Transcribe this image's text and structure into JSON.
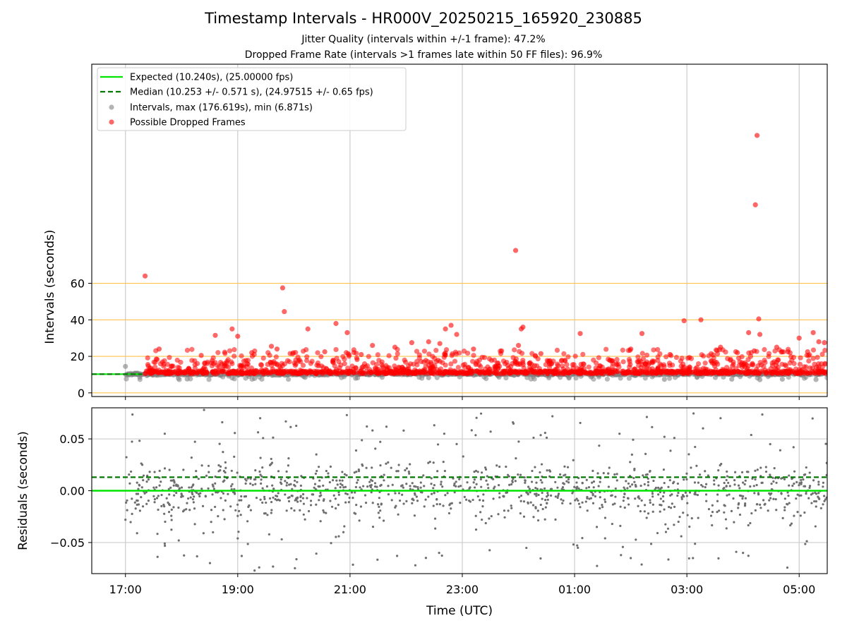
{
  "figure": {
    "title": "Timestamp Intervals - HR000V_20250215_165920_230885",
    "subtitle_1": "Jitter Quality (intervals within +/-1 frame): 47.2%",
    "subtitle_2": "Dropped Frame Rate (intervals >1 frames late within 50 FF files): 96.9%"
  },
  "colors": {
    "expected_line": "#00e400",
    "median_line": "#007a00",
    "intervals_points": "#808080",
    "dropped_points": "#ff0000",
    "threshold_lines": "#ffc34d",
    "residual_points": "#6e6e6e",
    "grid": "#cccccc"
  },
  "chart_data": [
    {
      "type": "scatter",
      "panel": "top",
      "ylabel": "Intervals (seconds)",
      "ylim": [
        -2,
        180
      ],
      "yticks": [
        0,
        20,
        40,
        60
      ],
      "ytick_labels": [
        "0",
        "20",
        "40",
        "60"
      ],
      "xlim_hours": [
        16.4,
        29.5
      ],
      "grid": "x only",
      "threshold_lines": [
        0,
        20,
        40,
        60
      ],
      "legend": {
        "placement": "upper-left",
        "entries": [
          "Expected (10.240s), (25.00000 fps)",
          "Median (10.253 +/- 0.571 s), (24.97515 +/- 0.65 fps)",
          "Intervals, max (176.619s), min (6.871s)",
          "Possible Dropped Frames"
        ]
      },
      "expected_value": 10.24,
      "median_value": 10.253,
      "median_line_extent_hours": [
        16.4,
        17.3
      ],
      "series": [
        {
          "name": "Intervals, max (176.619s), min (6.871s)",
          "note": "dense cloud of points near 10.24 s from 17:00 to 05:30 UTC",
          "x_range_hours": [
            17.0,
            29.5
          ],
          "y_range": [
            6.871,
            15.0
          ],
          "points": [
            [
              17.0,
              14.5
            ],
            [
              17.05,
              10.2
            ],
            [
              17.2,
              10.3
            ],
            [
              18.1,
              7.6
            ],
            [
              18.9,
              8.2
            ],
            [
              19.3,
              7.9
            ],
            [
              20.2,
              8.5
            ],
            [
              21.1,
              8.0
            ],
            [
              22.4,
              8.3
            ],
            [
              24.9,
              8.1
            ],
            [
              26.6,
              7.4
            ],
            [
              27.8,
              7.5
            ],
            [
              28.3,
              7.2
            ],
            [
              28.7,
              7.5
            ],
            [
              29.3,
              7.3
            ]
          ]
        },
        {
          "name": "Possible Dropped Frames",
          "note": "points above one frame late; dense band at 10.3-20 s",
          "x_range_hours": [
            17.35,
            29.5
          ],
          "points": [
            [
              17.35,
              64.0
            ],
            [
              17.55,
              18.5
            ],
            [
              17.6,
              24.0
            ],
            [
              18.35,
              20.5
            ],
            [
              18.6,
              31.5
            ],
            [
              18.9,
              35.0
            ],
            [
              19.0,
              31.0
            ],
            [
              19.25,
              22.0
            ],
            [
              19.6,
              25.5
            ],
            [
              19.7,
              24.0
            ],
            [
              19.8,
              57.5
            ],
            [
              19.83,
              44.5
            ],
            [
              20.25,
              35.0
            ],
            [
              20.55,
              22.5
            ],
            [
              20.75,
              38.0
            ],
            [
              20.95,
              33.0
            ],
            [
              21.2,
              21.0
            ],
            [
              21.4,
              26.0
            ],
            [
              21.8,
              25.0
            ],
            [
              22.1,
              27.5
            ],
            [
              22.4,
              28.0
            ],
            [
              22.6,
              27.0
            ],
            [
              22.7,
              35.0
            ],
            [
              22.8,
              37.0
            ],
            [
              22.9,
              32.0
            ],
            [
              23.2,
              24.0
            ],
            [
              23.7,
              23.0
            ],
            [
              24.0,
              26.0
            ],
            [
              24.05,
              35.0
            ],
            [
              24.08,
              36.0
            ],
            [
              23.95,
              78.0
            ],
            [
              24.4,
              21.5
            ],
            [
              25.1,
              32.5
            ],
            [
              26.0,
              24.0
            ],
            [
              26.2,
              32.5
            ],
            [
              26.7,
              21.0
            ],
            [
              26.95,
              39.5
            ],
            [
              27.25,
              40.0
            ],
            [
              27.6,
              25.0
            ],
            [
              27.9,
              22.0
            ],
            [
              28.1,
              33.0
            ],
            [
              28.2,
              23.0
            ],
            [
              28.25,
              141.0
            ],
            [
              28.22,
              103.0
            ],
            [
              28.28,
              40.5
            ],
            [
              28.3,
              32.0
            ],
            [
              28.6,
              25.0
            ],
            [
              28.8,
              22.5
            ],
            [
              29.0,
              30.0
            ],
            [
              29.15,
              22.5
            ],
            [
              29.25,
              33.0
            ],
            [
              29.35,
              28.0
            ],
            [
              29.45,
              27.5
            ]
          ]
        }
      ]
    },
    {
      "type": "scatter",
      "panel": "bottom",
      "xlabel": "Time (UTC)",
      "ylabel": "Residuals (seconds)",
      "ylim": [
        -0.08,
        0.08
      ],
      "yticks": [
        -0.05,
        0.0,
        0.05
      ],
      "ytick_labels": [
        "−0.05",
        "0.00",
        "0.05"
      ],
      "xlim_hours": [
        16.4,
        29.5
      ],
      "xticks_hours": [
        17,
        19,
        21,
        23,
        25,
        27,
        29
      ],
      "xtick_labels": [
        "17:00",
        "19:00",
        "21:00",
        "23:00",
        "01:00",
        "03:00",
        "05:00"
      ],
      "grid": "both",
      "expected_residual": 0.0,
      "median_residual": 0.013,
      "series": [
        {
          "name": "Residuals",
          "note": "about 1200 residual points clustered within roughly -0.02..+0.02 s, spreading to the axis limits",
          "x_range_hours": [
            17.0,
            29.5
          ],
          "y_range": [
            -0.08,
            0.08
          ],
          "points": [
            [
              17.0,
              -0.028
            ],
            [
              17.3,
              0.025
            ],
            [
              17.7,
              -0.051
            ],
            [
              17.7,
              0.055
            ],
            [
              17.95,
              -0.048
            ],
            [
              18.4,
              0.078
            ],
            [
              19.0,
              -0.046
            ],
            [
              19.3,
              -0.077
            ],
            [
              19.4,
              0.07
            ],
            [
              20.4,
              0.035
            ],
            [
              20.8,
              -0.044
            ],
            [
              21.3,
              0.062
            ],
            [
              22.9,
              0.045
            ],
            [
              24.1,
              -0.025
            ],
            [
              25.8,
              0.055
            ],
            [
              26.0,
              -0.065
            ],
            [
              26.6,
              0.052
            ],
            [
              26.9,
              -0.044
            ],
            [
              27.6,
              0.07
            ],
            [
              28.0,
              -0.06
            ],
            [
              28.9,
              0.042
            ],
            [
              29.45,
              -0.01
            ]
          ]
        }
      ]
    }
  ]
}
